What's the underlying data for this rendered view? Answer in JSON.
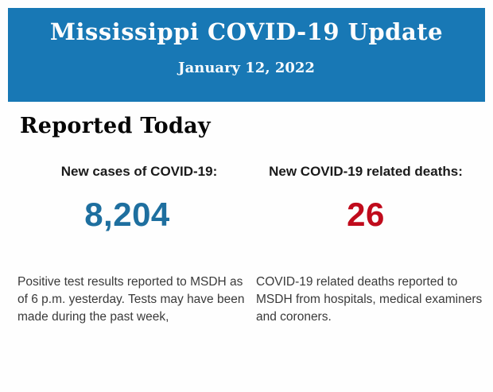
{
  "banner": {
    "title": "Mississippi COVID-19 Update",
    "date": "January 12, 2022",
    "background": "#1878b5"
  },
  "section": {
    "heading": "Reported Today"
  },
  "stats": {
    "cases": {
      "label": "New cases of COVID-19:",
      "value": "8,204",
      "color": "#1e6f9f",
      "description": "Positive test results reported to MSDH as\nof 6 p.m. yesterday. Tests may have been\nmade during the past week,"
    },
    "deaths": {
      "label": "New COVID-19 related deaths:",
      "value": "26",
      "color": "#c00b1c",
      "description": "COVID-19 related deaths reported to\nMSDH from hospitals, medical examiners\nand coroners."
    }
  }
}
